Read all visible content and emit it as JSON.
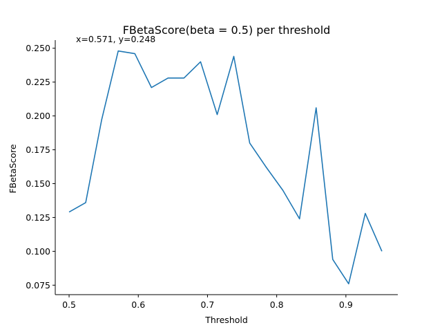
{
  "chart_data": {
    "type": "line",
    "title": "FBetaScore(beta = 0.5) per threshold",
    "xlabel": "Threshold",
    "ylabel": "FBetaScore",
    "annotation": "x=0.571, y=0.248",
    "xlim": [
      0.48,
      0.975
    ],
    "ylim": [
      0.068,
      0.256
    ],
    "xticks": [
      0.5,
      0.6,
      0.7,
      0.8,
      0.9
    ],
    "xtick_labels": [
      "0.5",
      "0.6",
      "0.7",
      "0.8",
      "0.9"
    ],
    "yticks": [
      0.075,
      0.1,
      0.125,
      0.15,
      0.175,
      0.2,
      0.225,
      0.25
    ],
    "ytick_labels": [
      "0.075",
      "0.100",
      "0.125",
      "0.150",
      "0.175",
      "0.200",
      "0.225",
      "0.250"
    ],
    "grid": false,
    "color": "#1f77b4",
    "series": [
      {
        "x": [
          0.5,
          0.524,
          0.547,
          0.571,
          0.595,
          0.619,
          0.643,
          0.666,
          0.69,
          0.714,
          0.738,
          0.761,
          0.785,
          0.809,
          0.833,
          0.857,
          0.881,
          0.904,
          0.928,
          0.952
        ],
        "values": [
          0.129,
          0.136,
          0.197,
          0.248,
          0.246,
          0.221,
          0.228,
          0.228,
          0.24,
          0.201,
          0.244,
          0.18,
          0.162,
          0.145,
          0.124,
          0.206,
          0.094,
          0.076,
          0.128,
          0.1
        ]
      }
    ]
  }
}
